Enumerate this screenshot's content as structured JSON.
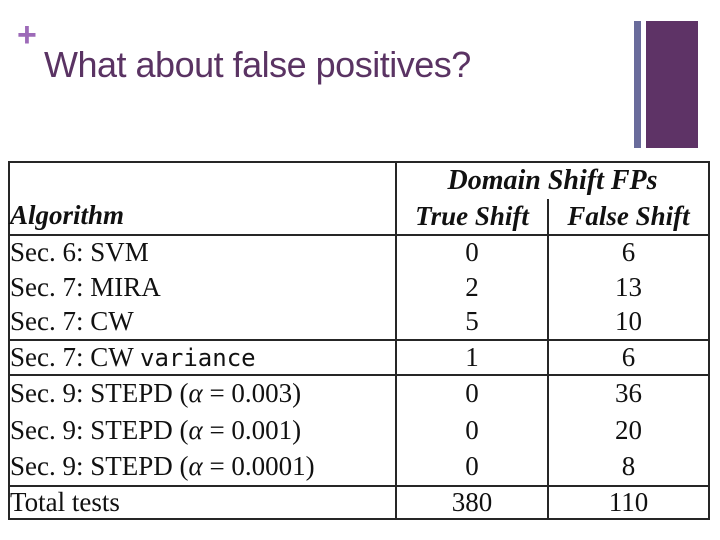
{
  "slide": {
    "plus_marker": "+",
    "title": "What about false positives?",
    "colors": {
      "title_text": "#5a3363",
      "plus_marker": "#9d6ab8",
      "accent_bar_thin": "#696b9b",
      "accent_bar_wide": "#5e3366",
      "table_lines": "#262626",
      "table_text": "#111111",
      "background": "#ffffff"
    }
  },
  "table": {
    "header": {
      "algorithm": "Algorithm",
      "group": "Domain Shift FPs",
      "true_shift": "True Shift",
      "false_shift": "False Shift"
    },
    "rows": [
      {
        "algorithm": "Sec. 6: SVM",
        "true_shift": "0",
        "false_shift": "6"
      },
      {
        "algorithm": "Sec. 7: MIRA",
        "true_shift": "2",
        "false_shift": "13"
      },
      {
        "algorithm": "Sec. 7: CW",
        "true_shift": "5",
        "false_shift": "10"
      },
      {
        "algorithm_parts": [
          "Sec. 7: CW ",
          "variance"
        ],
        "true_shift": "1",
        "false_shift": "6"
      },
      {
        "algorithm_parts": [
          "Sec. 9: STEPD (",
          "α",
          " = 0.003)"
        ],
        "true_shift": "0",
        "false_shift": "36"
      },
      {
        "algorithm_parts": [
          "Sec. 9: STEPD (",
          "α",
          " = 0.001)"
        ],
        "true_shift": "0",
        "false_shift": "20"
      },
      {
        "algorithm_parts": [
          "Sec. 9: STEPD (",
          "α",
          " = 0.0001)"
        ],
        "true_shift": "0",
        "false_shift": "8"
      },
      {
        "algorithm": "Total tests",
        "true_shift": "380",
        "false_shift": "110"
      }
    ]
  }
}
